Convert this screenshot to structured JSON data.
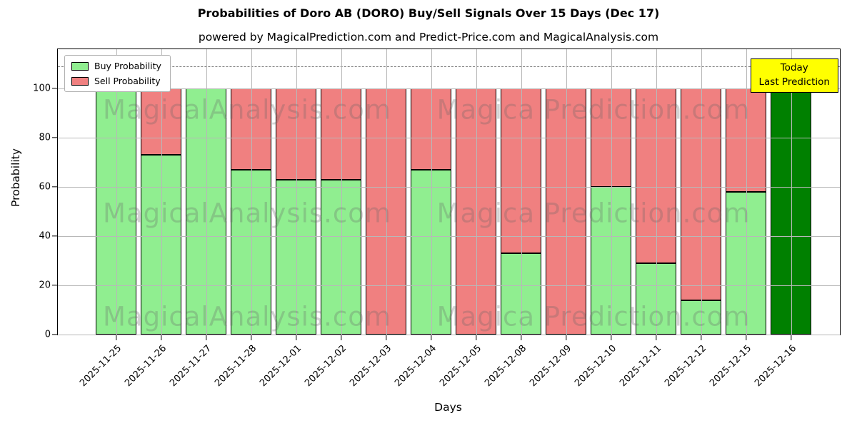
{
  "title": "Probabilities of Doro AB (DORO) Buy/Sell Signals Over 15 Days (Dec 17)",
  "subtitle": "powered by MagicalPrediction.com and Predict-Price.com and MagicalAnalysis.com",
  "legend": {
    "buy_label": "Buy Probability",
    "sell_label": "Sell Probability"
  },
  "annotation_box": {
    "line1": "Today",
    "line2": "Last Prediction"
  },
  "watermarks": {
    "left": "MagicalAnalysis.com",
    "right": "Magica Prediction.com"
  },
  "colors": {
    "buy": "#90ee90",
    "sell": "#f08080",
    "today_bar": "#008000",
    "annotation_bg": "#ffff00",
    "grid": "#b8b8b8",
    "bar_edge": "#000000"
  },
  "chart_data": {
    "type": "bar",
    "stacked": true,
    "title": "Probabilities of Doro AB (DORO) Buy/Sell Signals Over 15 Days (Dec 17)",
    "xlabel": "Days",
    "ylabel": "Probability",
    "categories": [
      "2025-11-25",
      "2025-11-26",
      "2025-11-27",
      "2025-11-28",
      "2025-12-01",
      "2025-12-02",
      "2025-12-03",
      "2025-12-04",
      "2025-12-05",
      "2025-12-08",
      "2025-12-09",
      "2025-12-10",
      "2025-12-11",
      "2025-12-12",
      "2025-12-15",
      "2025-12-16"
    ],
    "series": [
      {
        "name": "Buy Probability",
        "color": "#90ee90",
        "values": [
          100,
          73,
          100,
          67,
          63,
          63,
          0,
          67,
          0,
          33,
          0,
          60,
          29,
          14,
          58,
          100
        ]
      },
      {
        "name": "Sell Probability",
        "color": "#f08080",
        "values": [
          0,
          27,
          0,
          33,
          37,
          37,
          100,
          33,
          100,
          67,
          100,
          40,
          71,
          86,
          42,
          0
        ]
      }
    ],
    "today_bar": {
      "category": "2025-12-16",
      "color": "#008000",
      "value": 100
    },
    "yticks": [
      0,
      20,
      40,
      60,
      80,
      100
    ],
    "ylim": [
      0,
      116
    ],
    "dashed_line_y": 109,
    "grid": true,
    "legend_position": "upper left"
  }
}
